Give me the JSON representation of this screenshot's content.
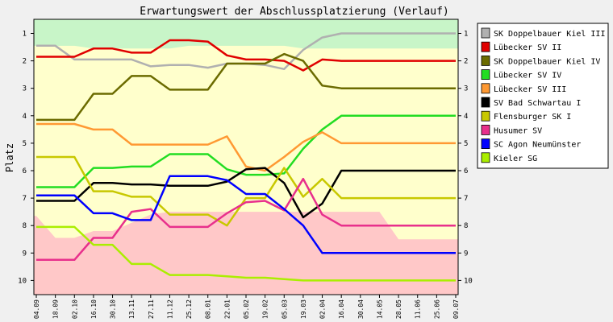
{
  "chart_data": {
    "type": "line",
    "title": "Erwartungswert der Abschlussplatzierung (Verlauf)",
    "xlabel": "",
    "ylabel": "Platz",
    "ylim": [
      1,
      10
    ],
    "y_inverted": true,
    "y_ticks": [
      "1",
      "2",
      "3",
      "4",
      "5",
      "6",
      "7",
      "8",
      "9",
      "10"
    ],
    "categories": [
      "04.09",
      "18.09",
      "02.10",
      "16.10",
      "30.10",
      "13.11",
      "27.11",
      "11.12",
      "25.12",
      "08.01",
      "22.01",
      "05.02",
      "19.02",
      "05.03",
      "19.03",
      "02.04",
      "16.04",
      "30.04",
      "14.05",
      "28.05",
      "11.06",
      "25.06",
      "09.07"
    ],
    "background_bands": {
      "promotion": {
        "color": "#c8f5c8",
        "upper_bound": [
          1.45,
          1.45,
          1.45,
          1.55,
          1.55,
          1.55,
          1.55,
          1.55,
          1.45,
          1.45,
          1.45,
          1.45,
          1.45,
          1.45,
          1.55,
          1.55,
          1.55,
          1.55,
          1.55,
          1.55,
          1.55,
          1.55,
          1.55
        ]
      },
      "midfield": {
        "color": "#ffffcc"
      },
      "relegation": {
        "color": "#ffc8c8",
        "lower_bound": [
          7.65,
          8.45,
          8.45,
          8.2,
          8.2,
          7.9,
          7.6,
          7.5,
          7.5,
          7.5,
          7.5,
          7.5,
          7.5,
          7.5,
          7.5,
          7.5,
          7.5,
          7.5,
          7.5,
          8.5,
          8.5,
          8.5,
          8.5
        ]
      }
    },
    "legend_position": "right",
    "grid": false,
    "series": [
      {
        "name": "SK Doppelbauer Kiel III",
        "color": "#b0b0b0",
        "values": [
          1.45,
          1.45,
          1.95,
          1.95,
          1.95,
          1.95,
          2.2,
          2.15,
          2.15,
          2.25,
          2.1,
          2.1,
          2.15,
          2.3,
          1.6,
          1.15,
          1.0,
          1.0,
          1.0,
          1.0,
          1.0,
          1.0,
          1.0
        ]
      },
      {
        "name": "Lübecker SV II",
        "color": "#e00000",
        "values": [
          1.85,
          1.85,
          1.85,
          1.55,
          1.55,
          1.7,
          1.7,
          1.25,
          1.25,
          1.3,
          1.8,
          1.95,
          1.95,
          2.0,
          2.35,
          1.95,
          2.0,
          2.0,
          2.0,
          2.0,
          2.0,
          2.0,
          2.0
        ]
      },
      {
        "name": "SK Doppelbauer Kiel IV",
        "color": "#6b6b00",
        "values": [
          4.15,
          4.15,
          4.15,
          3.2,
          3.2,
          2.55,
          2.55,
          3.05,
          3.05,
          3.05,
          2.1,
          2.1,
          2.1,
          1.75,
          2.0,
          2.9,
          3.0,
          3.0,
          3.0,
          3.0,
          3.0,
          3.0,
          3.0
        ]
      },
      {
        "name": "Lübecker SV IV",
        "color": "#22dd22",
        "values": [
          6.6,
          6.6,
          6.6,
          5.9,
          5.9,
          5.85,
          5.85,
          5.4,
          5.4,
          5.4,
          5.95,
          6.15,
          6.15,
          6.1,
          5.2,
          4.5,
          4.0,
          4.0,
          4.0,
          4.0,
          4.0,
          4.0,
          4.0
        ]
      },
      {
        "name": "Lübecker SV III",
        "color": "#ff9933",
        "values": [
          4.3,
          4.3,
          4.3,
          4.5,
          4.5,
          5.05,
          5.05,
          5.05,
          5.05,
          5.05,
          4.75,
          5.85,
          6.0,
          5.5,
          4.95,
          4.6,
          5.0,
          5.0,
          5.0,
          5.0,
          5.0,
          5.0,
          5.0
        ]
      },
      {
        "name": "SV Bad Schwartau I",
        "color": "#000000",
        "values": [
          7.1,
          7.1,
          7.1,
          6.45,
          6.45,
          6.5,
          6.5,
          6.55,
          6.55,
          6.55,
          6.4,
          5.95,
          5.9,
          6.45,
          7.7,
          7.2,
          6.0,
          6.0,
          6.0,
          6.0,
          6.0,
          6.0,
          6.0
        ]
      },
      {
        "name": "Flensburger SK I",
        "color": "#c8c800",
        "values": [
          5.5,
          5.5,
          5.5,
          6.75,
          6.75,
          6.95,
          6.95,
          7.6,
          7.6,
          7.6,
          8.0,
          7.0,
          7.0,
          5.9,
          6.95,
          6.3,
          7.0,
          7.0,
          7.0,
          7.0,
          7.0,
          7.0,
          7.0
        ]
      },
      {
        "name": "Husumer SV",
        "color": "#e8308c",
        "values": [
          9.25,
          9.25,
          9.25,
          8.45,
          8.45,
          7.5,
          7.4,
          8.05,
          8.05,
          8.05,
          7.55,
          7.15,
          7.1,
          7.45,
          6.3,
          7.6,
          8.0,
          8.0,
          8.0,
          8.0,
          8.0,
          8.0,
          8.0
        ]
      },
      {
        "name": "SC Agon Neumünster",
        "color": "#0000ff",
        "values": [
          6.9,
          6.9,
          6.9,
          7.55,
          7.55,
          7.8,
          7.8,
          6.2,
          6.2,
          6.2,
          6.35,
          6.85,
          6.85,
          7.4,
          8.0,
          9.0,
          9.0,
          9.0,
          9.0,
          9.0,
          9.0,
          9.0,
          9.0
        ]
      },
      {
        "name": "Kieler SG",
        "color": "#aaee00",
        "values": [
          8.05,
          8.05,
          8.05,
          8.7,
          8.7,
          9.4,
          9.4,
          9.8,
          9.8,
          9.8,
          9.85,
          9.9,
          9.9,
          9.95,
          10.0,
          10.0,
          10.0,
          10.0,
          10.0,
          10.0,
          10.0,
          10.0,
          10.0
        ]
      }
    ]
  }
}
